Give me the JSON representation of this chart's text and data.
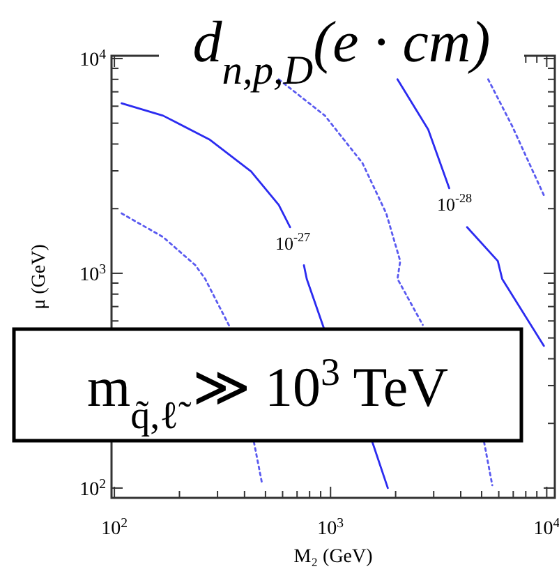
{
  "chart_data": {
    "type": "line",
    "title": "d$_{n,p,D}$(e · cm)",
    "xlabel": "M₂ (GeV)",
    "ylabel": "μ (GeV)",
    "log": "xy",
    "grid": false,
    "marker": "none",
    "xlim": [
      97,
      10900
    ],
    "ylim": [
      90,
      10300
    ],
    "xticks": [
      {
        "value": 100,
        "label": "10$^{2}$"
      },
      {
        "value": 200,
        "label": null
      },
      {
        "value": 300,
        "label": null
      },
      {
        "value": 400,
        "label": null
      },
      {
        "value": 500,
        "label": null
      },
      {
        "value": 600,
        "label": null
      },
      {
        "value": 700,
        "label": null
      },
      {
        "value": 800,
        "label": null
      },
      {
        "value": 900,
        "label": null
      },
      {
        "value": 1000,
        "label": "10$^{3}$"
      },
      {
        "value": 2000,
        "label": null
      },
      {
        "value": 3000,
        "label": null
      },
      {
        "value": 4000,
        "label": null
      },
      {
        "value": 5000,
        "label": null
      },
      {
        "value": 6000,
        "label": null
      },
      {
        "value": 7000,
        "label": null
      },
      {
        "value": 8000,
        "label": null
      },
      {
        "value": 9000,
        "label": null
      },
      {
        "value": 10000,
        "label": "10$^{4}$"
      }
    ],
    "yticks": [
      {
        "value": 100,
        "label": "10$^{2}$"
      },
      {
        "value": 200,
        "label": null
      },
      {
        "value": 300,
        "label": null
      },
      {
        "value": 400,
        "label": null
      },
      {
        "value": 500,
        "label": null
      },
      {
        "value": 600,
        "label": null
      },
      {
        "value": 700,
        "label": null
      },
      {
        "value": 800,
        "label": null
      },
      {
        "value": 900,
        "label": null
      },
      {
        "value": 1000,
        "label": "10$^{3}$"
      },
      {
        "value": 2000,
        "label": null
      },
      {
        "value": 3000,
        "label": null
      },
      {
        "value": 4000,
        "label": null
      },
      {
        "value": 5000,
        "label": null
      },
      {
        "value": 6000,
        "label": null
      },
      {
        "value": 7000,
        "label": null
      },
      {
        "value": 8000,
        "label": null
      },
      {
        "value": 9000,
        "label": null
      },
      {
        "value": 10000,
        "label": "10$^{4}$"
      }
    ],
    "series": [
      {
        "color": "#2b2bf0",
        "line_style": "solid",
        "x": [
          108,
          168,
          275,
          429,
          576,
          650,
          700,
          753,
          776,
          929,
          1200,
          1560,
          1840
        ],
        "values": [
          6190,
          5420,
          4200,
          2980,
          2080,
          1640,
          null,
          1090,
          942,
          559,
          null,
          164,
          100
        ]
      },
      {
        "color": "#5a5af0",
        "line_style": "dotted",
        "x": [
          576,
          942,
          1405,
          1810,
          2100,
          2040,
          2670,
          3500,
          5130,
          5600
        ],
        "values": [
          8000,
          5420,
          3260,
          1900,
          1140,
          942,
          575,
          null,
          164,
          103
        ]
      },
      {
        "color": "#2b2bf0",
        "line_style": "solid",
        "x": [
          2040,
          2830,
          3540,
          3900,
          4280,
          5940,
          6220,
          9700
        ],
        "values": [
          8000,
          4670,
          2490,
          null,
          1640,
          1140,
          942,
          459
        ]
      },
      {
        "color": "#5a5af0",
        "line_style": "dotted",
        "x": [
          5360,
          6900,
          9700
        ],
        "values": [
          8000,
          4880,
          2310
        ]
      },
      {
        "color": "#5a5af0",
        "line_style": "dotted",
        "x": [
          108,
          168,
          237,
          263,
          343,
          400,
          442,
          483
        ],
        "values": [
          1900,
          1475,
          1090,
          942,
          559,
          null,
          164,
          104
        ]
      }
    ],
    "annotations": [
      "10$^{-27}$",
      "10$^{-28}$",
      "m$_{q̃,ℓ̃}$ ≫ 10$^{3}$ TeV"
    ]
  }
}
